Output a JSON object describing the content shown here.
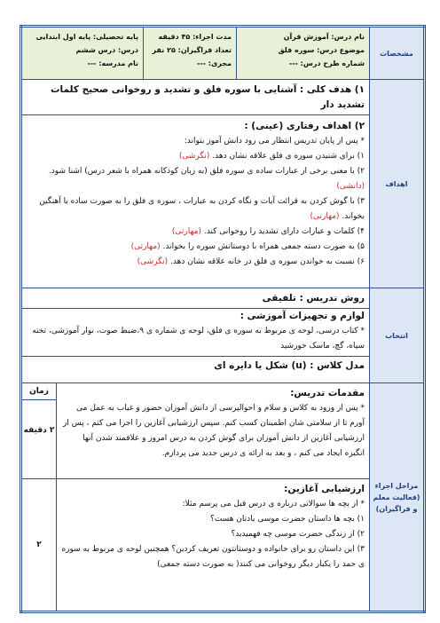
{
  "header": {
    "label": "مشخصات",
    "lesson": [
      "نام درس: آموزش قرآن",
      "موضوع درس: سوره فلق",
      "شماره طرح درس: ---"
    ],
    "time": [
      "مدت اجراء: ۴۵ دقیقه",
      "تعداد فراگیران: ۲۵ نفر",
      "مجری: ---"
    ],
    "grade": [
      "پایه تحصیلی: پایه اول ابتدایی",
      "درس: درس ششم",
      "نام مدرسه: ---"
    ]
  },
  "goals": {
    "label": "اهداف",
    "general": "۱) هدف کلی : آشنایی با سوره فلق و تشدید و روخوانی صحیح کلمات تشدید دار",
    "behavioral_title": "۲) اهداف رفتاری (عینی) :",
    "intro": "* پس از پایان تدریس انتظار می رود دانش آموز بتواند:",
    "items": [
      {
        "text": "۱) برای شنیدن سوره ی فلق علاقه نشان دهد.",
        "tag": "(نگرشی)"
      },
      {
        "text": "۲) با معنی برخی از عبارات ساده ی سوره فلق (به زبان کودکانه همراه با شعر درس) اشنا شود.",
        "tag": "(دانشی)"
      },
      {
        "text": "۳) با گوش کردن به قرائت آیات و نگاه کردن به عبارات ، سوره ی فلق را به صورت ساده یا آهنگین بخواند.",
        "tag": "(مهارتی)"
      },
      {
        "text": "۴) کلمات و عبارات دارای تشدید را روخوانی کند.",
        "tag": "(مهارتی)"
      },
      {
        "text": "۵) به صورت دسته جمعی همراه با دوستانش سوره را بخواند.",
        "tag": "(مهارتی)"
      },
      {
        "text": "۶) نسبت به خواندن سوره ی فلق در خانه علاقه نشان دهد.",
        "tag": "(نگرشی)"
      }
    ]
  },
  "selection": {
    "label": "انتخاب",
    "method": "روش تدریس : تلفیقی",
    "equipment_title": "لوازم و تجهیزات آموزشی :",
    "equipment": "* کتاب درسی، لوحه ی مربوط به سوره ی فلق، لوحه ی شماره ی ۹،ضبط صوت، نوار آموزشی، تخته سیاه، گچ، ماسک خورشید",
    "class_model": "مدل کلاس : (u) شکل یا دایره ای"
  },
  "steps": {
    "label": "مراحل اجراء (فعالیت معلم و فراگیران)",
    "time_header": "زمان",
    "intro": {
      "title": "مقدمات تدریس:",
      "text": "* پس از ورود به کلاس و سلام و احوالپرسی از دانش آموزان حضور و غیاب به عمل می آورم تا از سلامتی شان اطمینان کسب کنم. سپس ارزشیابی آغازین را اجرا می کنم ، پس از ارزشیابی آغازین از دانش آموزان برای گوش کردن به درس امروز و علاقمند شدن آنها انگیزه ایجاد می کنم ، و بعد به ارائه ی درس جدید می پردازم.",
      "time": "۲ دقیقه"
    },
    "assessment": {
      "title": "ارزشیابی آغازین:",
      "intro": "* از بچه ها سوالاتی درباره ی درس قبل می پرسم مثلا:",
      "questions": [
        "۱) بچه ها داستان حضرت موسی یادتان هست؟",
        "۲) از زندگی حضرت موسی چه فهمیدید؟",
        "۳) این داستان رو برای خانواده و دوستانتون تعریف کردین؟ همچنین لوحه ی مربوط به سوره ی حمد را یکبار دیگر روخوانی می کنند( به صورت دسته جمعی)"
      ],
      "time": "۲"
    }
  }
}
